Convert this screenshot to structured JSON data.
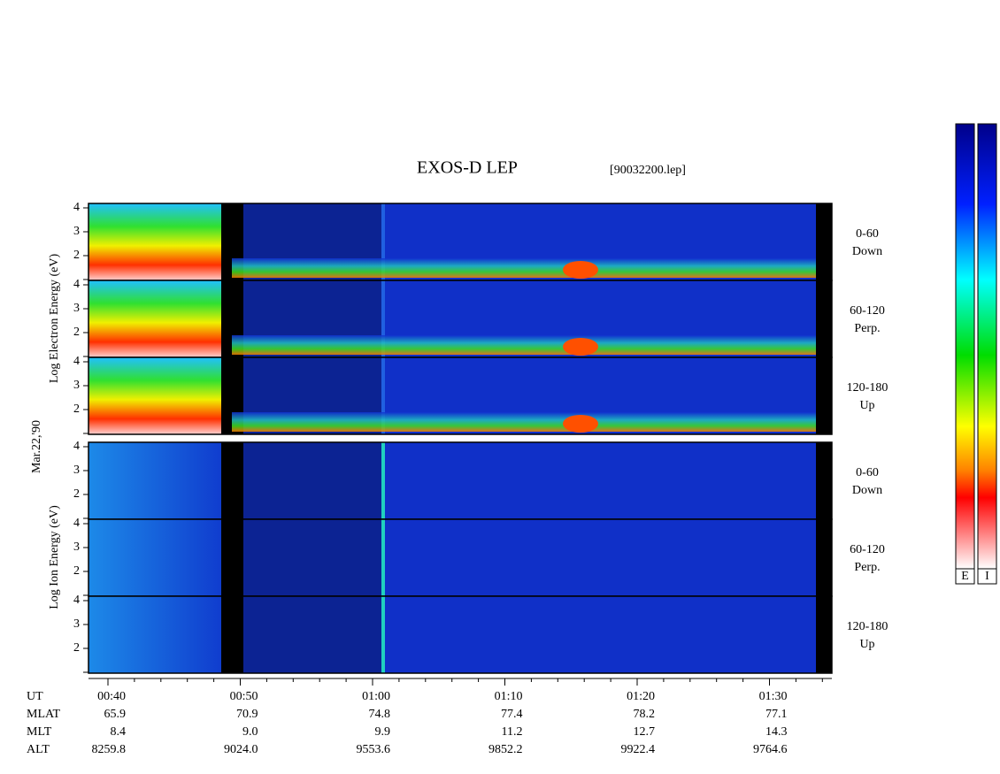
{
  "title": "EXOS-D LEP",
  "file": "[90032200.lep]",
  "date": "Mar.22,'90",
  "electron_axis_label": "Log Electron Energy (eV)",
  "ion_axis_label": "Log Ion Energy (eV)",
  "yticks": [
    2,
    3,
    4
  ],
  "panels": [
    {
      "range": "0-60",
      "direction": "Down"
    },
    {
      "range": "60-120",
      "direction": "Perp."
    },
    {
      "range": "120-180",
      "direction": "Up"
    }
  ],
  "table": {
    "rows": [
      {
        "name": "UT",
        "values": [
          "00:40",
          "00:50",
          "01:00",
          "01:10",
          "01:20",
          "01:30"
        ]
      },
      {
        "name": "MLAT",
        "values": [
          "65.9",
          "70.9",
          "74.8",
          "77.4",
          "78.2",
          "77.1"
        ]
      },
      {
        "name": "MLT",
        "values": [
          "8.4",
          "9.0",
          "9.9",
          "11.2",
          "12.7",
          "14.3"
        ]
      },
      {
        "name": "ALT",
        "values": [
          "8259.8",
          "9024.0",
          "9553.6",
          "9852.2",
          "9922.4",
          "9764.6"
        ]
      }
    ]
  },
  "colorbars": [
    "E",
    "I"
  ]
}
